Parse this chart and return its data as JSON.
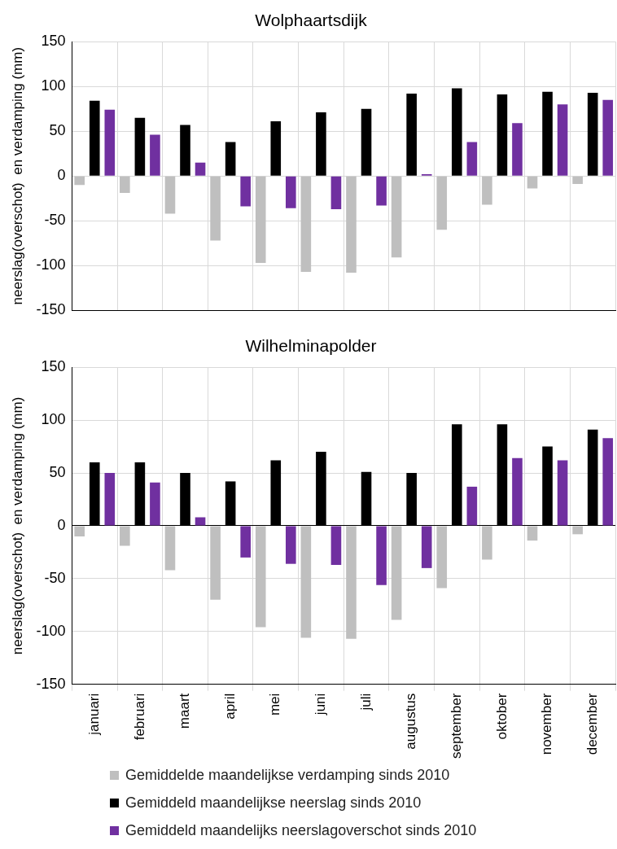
{
  "chart_data": [
    {
      "type": "bar",
      "title": "Wolphaartsdijk",
      "ylabel": "neerslag(overschot)  en verdamping (mm)",
      "categories": [
        null,
        null,
        null,
        null,
        null,
        null,
        null,
        null,
        null,
        null,
        null,
        null
      ],
      "series": [
        {
          "color": "#bfbfbf",
          "values": [
            -10,
            -19,
            -42,
            -72,
            -97,
            -107,
            -108,
            -91,
            -60,
            -32,
            -14,
            -9
          ]
        },
        {
          "color": "#000000",
          "values": [
            84,
            65,
            57,
            38,
            61,
            71,
            75,
            92,
            98,
            91,
            94,
            93
          ]
        },
        {
          "color": "#7030a0",
          "values": [
            74,
            46,
            15,
            -34,
            -36,
            -37,
            -33,
            2,
            38,
            59,
            80,
            85
          ]
        }
      ],
      "ylim": [
        -150,
        150
      ],
      "yticks": [
        -150,
        -100,
        -50,
        0,
        50,
        100,
        150
      ],
      "grid": true,
      "legend": false,
      "tick_labels": "y"
    },
    {
      "type": "bar",
      "title": "Wilhelminapolder",
      "ylabel": "neerslag(overschot)  en verdamping (mm)",
      "categories": [
        "januari",
        "februari",
        "maart",
        "april",
        "mei",
        "juni",
        "juli",
        "augustus",
        "september",
        "oktober",
        "november",
        "december"
      ],
      "series": [
        {
          "name": "Gemiddelde maandelijkse verdamping sinds 2010",
          "color": "#bfbfbf",
          "values": [
            -10,
            -19,
            -42,
            -70,
            -96,
            -106,
            -107,
            -89,
            -59,
            -32,
            -14,
            -8
          ]
        },
        {
          "name": "Gemiddeld maandelijkse neerslag sinds 2010",
          "color": "#000000",
          "values": [
            60,
            60,
            50,
            42,
            62,
            70,
            51,
            50,
            96,
            96,
            75,
            91
          ]
        },
        {
          "name": "Gemiddeld maandelijks neerslagoverschot sinds 2010",
          "color": "#7030a0",
          "values": [
            50,
            41,
            8,
            -30,
            -36,
            -37,
            -56,
            -40,
            37,
            64,
            62,
            83
          ]
        }
      ],
      "ylim": [
        -150,
        150
      ],
      "yticks": [
        -150,
        -100,
        -50,
        0,
        50,
        100,
        150
      ],
      "grid": true,
      "legend": "bottom"
    }
  ]
}
